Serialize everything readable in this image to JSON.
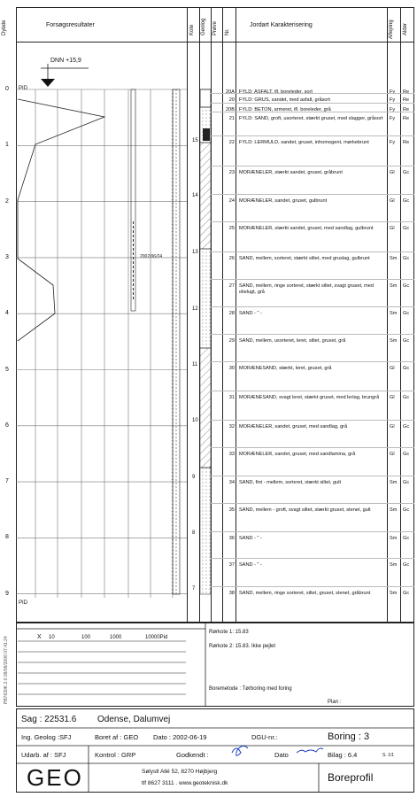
{
  "header": {
    "depth_label": "Dybde",
    "results_label": "Forsøgsresultater",
    "kote_label": "Kote",
    "geolog_label": "Geolog",
    "prove_label": "Prøve",
    "nr_label": "Nr.",
    "soil_label": "Jordart  Karakterisering",
    "aflejring_label": "Aflejring",
    "alder_label": "Alder"
  },
  "dnn_label": "DNN +15,9",
  "pid_label": "PID",
  "depth_ticks": [
    "0",
    "1",
    "2",
    "3",
    "4",
    "5",
    "6",
    "7",
    "8",
    "9"
  ],
  "kote_ticks": [
    "15",
    "14",
    "13",
    "12",
    "11",
    "10",
    "9",
    "8",
    "7"
  ],
  "water_level_label": "2002/06/24",
  "bottom_scale": {
    "x_label": "X",
    "ticks": [
      "10",
      "100",
      "1000",
      "10000Pid"
    ]
  },
  "layers": [
    {
      "nr": "20A",
      "desc": "FYLD: ASFALT, ifl. boreleder, sort",
      "afl": "Fy",
      "alder": "Re"
    },
    {
      "nr": "20",
      "desc": "FYLD: GRUS, sandet, med asfalt, gråsort",
      "afl": "Fy",
      "alder": "Re"
    },
    {
      "nr": "20B",
      "desc": "FYLD: BETON, armeret, ifl. boreleder, grå",
      "afl": "Fy",
      "alder": "Re"
    },
    {
      "nr": "21",
      "desc": "FYLD: SAND, groft, usorteret, stærkt gruset, med slagger, gråsort",
      "afl": "Fy",
      "alder": "Re"
    },
    {
      "nr": "22",
      "desc": "FYLD: LERMULD, sandet, gruset, inhomogent, mørkebrunt",
      "afl": "Fy",
      "alder": "Re"
    },
    {
      "nr": "23",
      "desc": "MORÆNELER, stærkt sandet, gruset, gråbrunt",
      "afl": "Gl",
      "alder": "Gc"
    },
    {
      "nr": "24",
      "desc": "MORÆNELER, sandet, gruset, gulbrunt",
      "afl": "Gl",
      "alder": "Gc"
    },
    {
      "nr": "25",
      "desc": "MORÆNELER, stærkt sandet, gruset, med sandlag, gulbrunt",
      "afl": "Gl",
      "alder": "Gc"
    },
    {
      "nr": "26",
      "desc": "SAND, mellem, sorteret, stærkt siltet, med gruslag, gulbrunt",
      "afl": "Sm",
      "alder": "Gc"
    },
    {
      "nr": "27",
      "desc": "SAND, mellem, ringe sorteret, stærkt siltet, svagt gruset, med olielugt, grå",
      "afl": "Sm",
      "alder": "Gc"
    },
    {
      "nr": "28",
      "desc": "SAND  - \" -",
      "afl": "Sm",
      "alder": "Gc"
    },
    {
      "nr": "29",
      "desc": "SAND, mellem, usorteret, leret, siltet, gruset, grå",
      "afl": "Sm",
      "alder": "Gc"
    },
    {
      "nr": "30",
      "desc": "MORÆNESAND, stærkt, leret, gruset, grå",
      "afl": "Gl",
      "alder": "Gc"
    },
    {
      "nr": "31",
      "desc": "MORÆNESAND, svagt leret, stærkt gruset, med lerlag, brungrå",
      "afl": "Gl",
      "alder": "Gc"
    },
    {
      "nr": "32",
      "desc": "MORÆNELER, sandet, gruset, med sandlag, grå",
      "afl": "Gl",
      "alder": "Gc"
    },
    {
      "nr": "33",
      "desc": "MORÆNELER, sandet, gruset, med sandlamina, grå",
      "afl": "Gl",
      "alder": "Gc"
    },
    {
      "nr": "34",
      "desc": "SAND, fint - mellem, sorteret, stærkt siltet, gult",
      "afl": "Sm",
      "alder": "Gc"
    },
    {
      "nr": "35",
      "desc": "SAND, mellem - groft, svagt siltet, stærkt gruset, stenet, gult",
      "afl": "Sm",
      "alder": "Gc"
    },
    {
      "nr": "36",
      "desc": "SAND  - \" -",
      "afl": "Sm",
      "alder": "Gc"
    },
    {
      "nr": "37",
      "desc": "SAND  - \" -",
      "afl": "Sm",
      "alder": "Gc"
    },
    {
      "nr": "38",
      "desc": "SAND, mellem, ringe sorteret, siltet, gruset, stenet, gråbrunt",
      "afl": "Sm",
      "alder": "Gc"
    }
  ],
  "notes": {
    "rorkote1": "Rørkote 1: 15.83",
    "rorkote2": "Rørkote 2: 15.83. Ikke pejlet",
    "boremetode": "Boremetode : Tørboring med foring",
    "plan": "Plan :"
  },
  "footer": {
    "sag": "Sag :  22531.6",
    "location": "Odense, Dalumvej",
    "ing_geolog": "Ing. Geolog :SFJ",
    "boret_af": "Boret af : GEO",
    "dato": "Dato :  2002-06-19",
    "dgu": "DGU-nr.:",
    "boring": "Boring : 3",
    "udarb": "Udarb. af :  SFJ",
    "kontrol": "Kontrol :  GRP",
    "godkendt": "Godkendt :",
    "dato2": "Dato",
    "bilag": "Bilag :  6.4",
    "page": "S. 1/1",
    "logo": "GEO",
    "address1": "Sølystl Allé 52, 8270 Højbjerg",
    "address2": "tlf 8627 3111 . www.geoteknisk.dk",
    "doc_type": "Boreprofil"
  },
  "side_text": "PB7630K 2.0  09/08/2006 07:41:24"
}
